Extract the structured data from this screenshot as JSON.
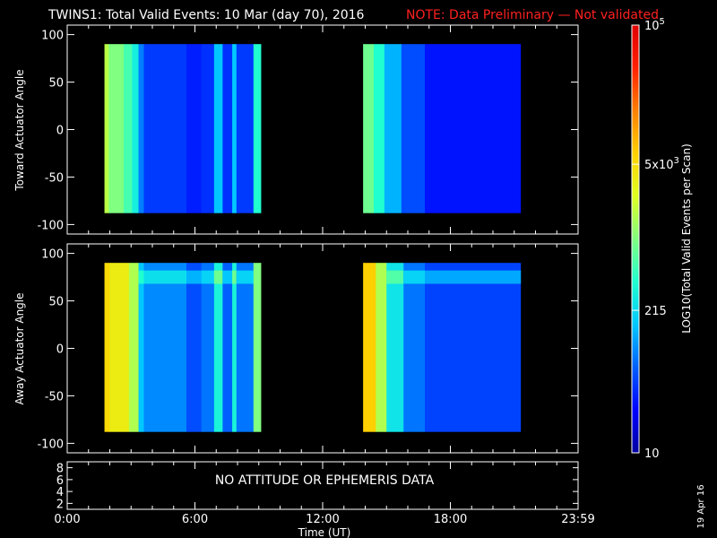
{
  "title": {
    "main": "TWINS1: Total Valid Events: 10 Mar (day  70), 2016",
    "note": "NOTE: Data Preliminary — Not validated",
    "note_color": "#ff2020"
  },
  "footer": {
    "date_stamp": "19 Apr 16"
  },
  "chart_data": [
    {
      "type": "heatmap",
      "ylabel": "Toward Actuator Angle",
      "ylim": [
        -110,
        110
      ],
      "yticks": [
        "100",
        "50",
        "0",
        "-50",
        "-100"
      ],
      "angle_range": [
        -88,
        90
      ],
      "data_intervals_hours": [
        [
          1.75,
          9.1
        ],
        [
          13.9,
          21.3
        ]
      ],
      "time_profile": [
        {
          "start": 1.75,
          "end": 1.95,
          "level": 0.56
        },
        {
          "start": 1.95,
          "end": 2.65,
          "level": 0.5
        },
        {
          "start": 2.65,
          "end": 3.05,
          "level": 0.44
        },
        {
          "start": 3.05,
          "end": 3.35,
          "level": 0.37
        },
        {
          "start": 3.35,
          "end": 3.6,
          "level": 0.23
        },
        {
          "start": 3.6,
          "end": 5.6,
          "level": 0.16
        },
        {
          "start": 5.6,
          "end": 6.3,
          "level": 0.13
        },
        {
          "start": 6.3,
          "end": 6.9,
          "level": 0.15
        },
        {
          "start": 6.9,
          "end": 7.3,
          "level": 0.3
        },
        {
          "start": 7.3,
          "end": 7.75,
          "level": 0.15
        },
        {
          "start": 7.75,
          "end": 7.95,
          "level": 0.3
        },
        {
          "start": 7.95,
          "end": 8.75,
          "level": 0.16
        },
        {
          "start": 8.75,
          "end": 9.1,
          "level": 0.4
        },
        {
          "start": 13.9,
          "end": 14.4,
          "level": 0.48
        },
        {
          "start": 14.4,
          "end": 14.9,
          "level": 0.4
        },
        {
          "start": 14.9,
          "end": 15.7,
          "level": 0.28
        },
        {
          "start": 15.7,
          "end": 16.8,
          "level": 0.18
        },
        {
          "start": 16.8,
          "end": 21.3,
          "level": 0.12
        }
      ]
    },
    {
      "type": "heatmap",
      "ylabel": "Away Actuator Angle",
      "ylim": [
        -110,
        110
      ],
      "yticks": [
        "100",
        "50",
        "0",
        "-50",
        "-100"
      ],
      "angle_range": [
        -88,
        90
      ],
      "data_intervals_hours": [
        [
          1.75,
          9.1
        ],
        [
          13.9,
          21.3
        ]
      ],
      "band_angle_range": [
        68,
        82
      ],
      "time_profile": [
        {
          "start": 1.75,
          "end": 2.0,
          "level": 0.68
        },
        {
          "start": 2.0,
          "end": 2.9,
          "level": 0.64
        },
        {
          "start": 2.9,
          "end": 3.35,
          "level": 0.55
        },
        {
          "start": 3.35,
          "end": 3.6,
          "level": 0.3
        },
        {
          "start": 3.6,
          "end": 5.6,
          "level": 0.24
        },
        {
          "start": 5.6,
          "end": 6.3,
          "level": 0.18
        },
        {
          "start": 6.3,
          "end": 6.9,
          "level": 0.22
        },
        {
          "start": 6.9,
          "end": 7.3,
          "level": 0.38
        },
        {
          "start": 7.3,
          "end": 7.75,
          "level": 0.2
        },
        {
          "start": 7.75,
          "end": 7.95,
          "level": 0.38
        },
        {
          "start": 7.95,
          "end": 8.75,
          "level": 0.22
        },
        {
          "start": 8.75,
          "end": 9.1,
          "level": 0.5
        },
        {
          "start": 13.9,
          "end": 14.5,
          "level": 0.7
        },
        {
          "start": 14.5,
          "end": 15.0,
          "level": 0.55
        },
        {
          "start": 15.0,
          "end": 15.8,
          "level": 0.35
        },
        {
          "start": 15.8,
          "end": 16.8,
          "level": 0.22
        },
        {
          "start": 16.8,
          "end": 21.3,
          "level": 0.17
        }
      ]
    },
    {
      "type": "line",
      "yticks": [
        "8",
        "6",
        "4",
        "2"
      ],
      "ylim": [
        1,
        9
      ],
      "message": "NO ATTITUDE OR EPHEMERIS DATA"
    }
  ],
  "x_axis": {
    "label": "Time (UT)",
    "range_hours": [
      0,
      24
    ],
    "ticks": [
      {
        "value": 0,
        "label": "0:00"
      },
      {
        "value": 6,
        "label": "6:00"
      },
      {
        "value": 12,
        "label": "12:00"
      },
      {
        "value": 18,
        "label": "18:00"
      },
      {
        "value": 24,
        "label": "23:59"
      }
    ]
  },
  "colorbar": {
    "label": "LOG10(Total Valid Events per Scan)",
    "range": [
      10,
      100000
    ],
    "scale": "log",
    "tick_labels": [
      {
        "value": 100000,
        "label": "10^5"
      },
      {
        "value": 5000,
        "label": "5x10^3"
      },
      {
        "value": 215,
        "label": "215"
      },
      {
        "value": 10,
        "label": "10"
      }
    ],
    "colors": [
      "#0000a0",
      "#0000ff",
      "#0060ff",
      "#00c8ff",
      "#20ffd0",
      "#80ff80",
      "#e0ff20",
      "#ffd000",
      "#ff8000",
      "#ff2000",
      "#e00000"
    ]
  }
}
